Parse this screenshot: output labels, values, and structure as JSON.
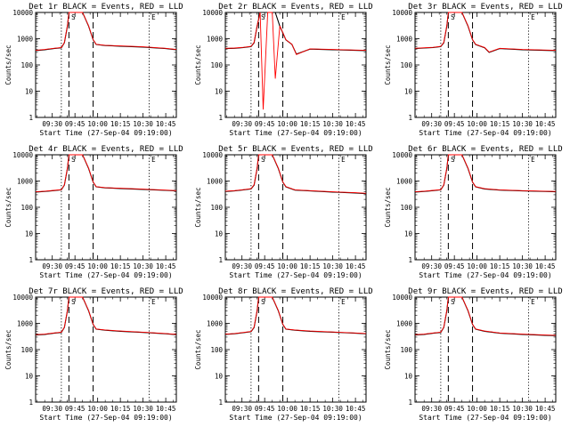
{
  "chart_data": [
    {
      "type": "line",
      "title": "Det 1r BLACK = Events, RED = LLD",
      "xlabel": "Start Time (27-Sep-04 09:19:00)",
      "ylabel": "Counts/sec",
      "yscale": "log",
      "ylim": [
        1,
        10000
      ],
      "yticks": [
        "1",
        "10",
        "100",
        "1000",
        "10000"
      ],
      "xticks": [
        "09:30",
        "09:45",
        "10:00",
        "10:15",
        "10:30",
        "10:45"
      ],
      "markers": [
        "S",
        "E"
      ],
      "vlines_dashed": [
        "09:41",
        "09:57"
      ],
      "vlines_dotted": [
        "09:36",
        "10:34"
      ],
      "x": [
        "09:19",
        "09:25",
        "09:31",
        "09:36",
        "09:38",
        "09:40",
        "09:41",
        "09:43",
        "09:46",
        "09:50",
        "09:54",
        "09:57",
        "09:59",
        "10:05",
        "10:15",
        "10:30",
        "10:45",
        "10:52"
      ],
      "series": [
        {
          "name": "Events",
          "color": "#000000",
          "values": [
            350,
            380,
            420,
            450,
            700,
            3000,
            10000,
            10000,
            10000,
            10000,
            3000,
            900,
            600,
            550,
            520,
            480,
            420,
            380
          ]
        },
        {
          "name": "LLD",
          "color": "#ff0000",
          "values": [
            360,
            390,
            430,
            460,
            720,
            3100,
            10000,
            10000,
            10000,
            10000,
            3100,
            920,
            610,
            560,
            530,
            490,
            430,
            390
          ]
        }
      ]
    },
    {
      "type": "line",
      "title": "Det 2r BLACK = Events, RED = LLD",
      "xlabel": "Start Time (27-Sep-04 09:19:00)",
      "ylabel": "Counts/sec",
      "yscale": "log",
      "ylim": [
        1,
        10000
      ],
      "yticks": [
        "1",
        "10",
        "100",
        "1000",
        "10000"
      ],
      "xticks": [
        "09:30",
        "09:45",
        "10:00",
        "10:15",
        "10:30",
        "10:45"
      ],
      "markers": [
        "S",
        "E"
      ],
      "vlines_dashed": [
        "09:41",
        "09:57"
      ],
      "vlines_dotted": [
        "09:36",
        "10:34"
      ],
      "x": [
        "09:19",
        "09:25",
        "09:31",
        "09:36",
        "09:38",
        "09:40",
        "09:42",
        "09:44",
        "09:47",
        "09:50",
        "09:52",
        "09:55",
        "09:59",
        "10:03",
        "10:06",
        "10:15",
        "10:30",
        "10:52"
      ],
      "series": [
        {
          "name": "Events",
          "color": "#000000",
          "values": [
            420,
            430,
            460,
            500,
            700,
            3000,
            10000,
            10000,
            10000,
            10000,
            10000,
            3000,
            900,
            600,
            260,
            400,
            380,
            350
          ]
        },
        {
          "name": "LLD",
          "color": "#ff0000",
          "values": [
            430,
            440,
            470,
            510,
            720,
            3100,
            10000,
            2,
            10000,
            10000,
            30,
            3100,
            920,
            610,
            250,
            410,
            390,
            360
          ]
        }
      ]
    },
    {
      "type": "line",
      "title": "Det 3r BLACK = Events, RED = LLD",
      "xlabel": "Start Time (27-Sep-04 09:19:00)",
      "ylabel": "Counts/sec",
      "yscale": "log",
      "ylim": [
        1,
        10000
      ],
      "yticks": [
        "1",
        "10",
        "100",
        "1000",
        "10000"
      ],
      "xticks": [
        "09:30",
        "09:45",
        "10:00",
        "10:15",
        "10:30",
        "10:45"
      ],
      "markers": [
        "S",
        "E"
      ],
      "vlines_dashed": [
        "09:41",
        "09:57"
      ],
      "vlines_dotted": [
        "09:36",
        "10:34"
      ],
      "x": [
        "09:19",
        "09:25",
        "09:31",
        "09:36",
        "09:38",
        "09:40",
        "09:41",
        "09:43",
        "09:46",
        "09:50",
        "09:54",
        "09:57",
        "09:59",
        "10:05",
        "10:08",
        "10:15",
        "10:30",
        "10:52"
      ],
      "series": [
        {
          "name": "Events",
          "color": "#000000",
          "values": [
            420,
            440,
            460,
            500,
            700,
            3000,
            10000,
            10000,
            10000,
            10000,
            3000,
            900,
            600,
            450,
            300,
            420,
            380,
            350
          ]
        },
        {
          "name": "LLD",
          "color": "#ff0000",
          "values": [
            430,
            450,
            470,
            510,
            720,
            3100,
            10000,
            10000,
            10000,
            10000,
            3100,
            920,
            610,
            460,
            310,
            430,
            390,
            360
          ]
        }
      ]
    },
    {
      "type": "line",
      "title": "Det 4r BLACK = Events, RED = LLD",
      "xlabel": "Start Time (27-Sep-04 09:19:00)",
      "ylabel": "Counts/sec",
      "yscale": "log",
      "ylim": [
        1,
        10000
      ],
      "yticks": [
        "1",
        "10",
        "100",
        "1000",
        "10000"
      ],
      "xticks": [
        "09:30",
        "09:45",
        "10:00",
        "10:15",
        "10:30",
        "10:45"
      ],
      "markers": [
        "S",
        "E"
      ],
      "vlines_dashed": [
        "09:41",
        "09:57"
      ],
      "vlines_dotted": [
        "09:36",
        "10:34"
      ],
      "x": [
        "09:19",
        "09:25",
        "09:31",
        "09:36",
        "09:38",
        "09:40",
        "09:41",
        "09:43",
        "09:46",
        "09:50",
        "09:54",
        "09:57",
        "09:59",
        "10:05",
        "10:15",
        "10:30",
        "10:45",
        "10:52"
      ],
      "series": [
        {
          "name": "Events",
          "color": "#000000",
          "values": [
            380,
            400,
            430,
            460,
            700,
            3000,
            10000,
            10000,
            10000,
            10000,
            3000,
            900,
            600,
            550,
            520,
            480,
            440,
            420
          ]
        },
        {
          "name": "LLD",
          "color": "#ff0000",
          "values": [
            390,
            410,
            440,
            470,
            720,
            3100,
            10000,
            10000,
            10000,
            10000,
            3100,
            920,
            610,
            560,
            530,
            490,
            450,
            430
          ]
        }
      ]
    },
    {
      "type": "line",
      "title": "Det 5r BLACK = Events, RED = LLD",
      "xlabel": "Start Time (27-Sep-04 09:19:00)",
      "ylabel": "Counts/sec",
      "yscale": "log",
      "ylim": [
        1,
        10000
      ],
      "yticks": [
        "1",
        "10",
        "100",
        "1000",
        "10000"
      ],
      "xticks": [
        "09:30",
        "09:45",
        "10:00",
        "10:15",
        "10:30",
        "10:45"
      ],
      "markers": [
        "S",
        "E"
      ],
      "vlines_dashed": [
        "09:41",
        "09:57"
      ],
      "vlines_dotted": [
        "09:36",
        "10:34"
      ],
      "x": [
        "09:19",
        "09:25",
        "09:31",
        "09:36",
        "09:38",
        "09:40",
        "09:41",
        "09:43",
        "09:46",
        "09:50",
        "09:54",
        "09:57",
        "09:59",
        "10:05",
        "10:15",
        "10:30",
        "10:45",
        "10:52"
      ],
      "series": [
        {
          "name": "Events",
          "color": "#000000",
          "values": [
            400,
            420,
            460,
            500,
            700,
            3000,
            10000,
            10000,
            10000,
            10000,
            3000,
            900,
            600,
            450,
            420,
            380,
            350,
            330
          ]
        },
        {
          "name": "LLD",
          "color": "#ff0000",
          "values": [
            410,
            430,
            470,
            510,
            720,
            3100,
            10000,
            10000,
            10000,
            10000,
            3100,
            920,
            610,
            460,
            430,
            390,
            360,
            340
          ]
        }
      ]
    },
    {
      "type": "line",
      "title": "Det 6r BLACK = Events, RED = LLD",
      "xlabel": "Start Time (27-Sep-04 09:19:00)",
      "ylabel": "Counts/sec",
      "yscale": "log",
      "ylim": [
        1,
        10000
      ],
      "yticks": [
        "1",
        "10",
        "100",
        "1000",
        "10000"
      ],
      "xticks": [
        "09:30",
        "09:45",
        "10:00",
        "10:15",
        "10:30",
        "10:45"
      ],
      "markers": [
        "S",
        "E"
      ],
      "vlines_dashed": [
        "09:41",
        "09:57"
      ],
      "vlines_dotted": [
        "09:36",
        "10:34"
      ],
      "x": [
        "09:19",
        "09:25",
        "09:31",
        "09:36",
        "09:38",
        "09:40",
        "09:41",
        "09:43",
        "09:46",
        "09:50",
        "09:54",
        "09:57",
        "09:59",
        "10:05",
        "10:15",
        "10:30",
        "10:45",
        "10:52"
      ],
      "series": [
        {
          "name": "Events",
          "color": "#000000",
          "values": [
            380,
            400,
            430,
            460,
            700,
            3000,
            10000,
            10000,
            10000,
            10000,
            3000,
            900,
            600,
            500,
            450,
            420,
            400,
            390
          ]
        },
        {
          "name": "LLD",
          "color": "#ff0000",
          "values": [
            390,
            410,
            440,
            470,
            720,
            3100,
            10000,
            10000,
            10000,
            10000,
            3100,
            920,
            610,
            510,
            460,
            430,
            410,
            400
          ]
        }
      ]
    },
    {
      "type": "line",
      "title": "Det 7r BLACK = Events, RED = LLD",
      "xlabel": "Start Time (27-Sep-04 09:19:00)",
      "ylabel": "Counts/sec",
      "yscale": "log",
      "ylim": [
        1,
        10000
      ],
      "yticks": [
        "1",
        "10",
        "100",
        "1000",
        "10000"
      ],
      "xticks": [
        "09:30",
        "09:45",
        "10:00",
        "10:15",
        "10:30",
        "10:45"
      ],
      "markers": [
        "S",
        "E"
      ],
      "vlines_dashed": [
        "09:41",
        "09:57"
      ],
      "vlines_dotted": [
        "09:36",
        "10:34"
      ],
      "x": [
        "09:19",
        "09:25",
        "09:31",
        "09:36",
        "09:38",
        "09:40",
        "09:41",
        "09:43",
        "09:46",
        "09:50",
        "09:54",
        "09:57",
        "09:59",
        "10:05",
        "10:15",
        "10:30",
        "10:45",
        "10:52"
      ],
      "series": [
        {
          "name": "Events",
          "color": "#000000",
          "values": [
            360,
            380,
            420,
            450,
            700,
            3000,
            10000,
            10000,
            10000,
            10000,
            3000,
            900,
            600,
            550,
            500,
            450,
            400,
            370
          ]
        },
        {
          "name": "LLD",
          "color": "#ff0000",
          "values": [
            370,
            390,
            430,
            460,
            720,
            3100,
            10000,
            10000,
            10000,
            10000,
            3100,
            920,
            610,
            560,
            510,
            460,
            410,
            380
          ]
        }
      ]
    },
    {
      "type": "line",
      "title": "Det 8r BLACK = Events, RED = LLD",
      "xlabel": "Start Time (27-Sep-04 09:19:00)",
      "ylabel": "Counts/sec",
      "yscale": "log",
      "ylim": [
        1,
        10000
      ],
      "yticks": [
        "1",
        "10",
        "100",
        "1000",
        "10000"
      ],
      "xticks": [
        "09:30",
        "09:45",
        "10:00",
        "10:15",
        "10:30",
        "10:45"
      ],
      "markers": [
        "S",
        "E"
      ],
      "vlines_dashed": [
        "09:41",
        "09:57"
      ],
      "vlines_dotted": [
        "09:36",
        "10:34"
      ],
      "x": [
        "09:19",
        "09:25",
        "09:31",
        "09:36",
        "09:38",
        "09:40",
        "09:41",
        "09:43",
        "09:46",
        "09:50",
        "09:54",
        "09:57",
        "09:59",
        "10:05",
        "10:15",
        "10:30",
        "10:45",
        "10:52"
      ],
      "series": [
        {
          "name": "Events",
          "color": "#000000",
          "values": [
            380,
            400,
            440,
            480,
            700,
            3000,
            10000,
            10000,
            10000,
            10000,
            3000,
            900,
            600,
            550,
            500,
            460,
            420,
            400
          ]
        },
        {
          "name": "LLD",
          "color": "#ff0000",
          "values": [
            390,
            410,
            450,
            490,
            720,
            3100,
            10000,
            10000,
            10000,
            10000,
            3100,
            920,
            610,
            560,
            510,
            470,
            430,
            410
          ]
        }
      ]
    },
    {
      "type": "line",
      "title": "Det 9r BLACK = Events, RED = LLD",
      "xlabel": "Start Time (27-Sep-04 09:19:00)",
      "ylabel": "Counts/sec",
      "yscale": "log",
      "ylim": [
        1,
        10000
      ],
      "yticks": [
        "1",
        "10",
        "100",
        "1000",
        "10000"
      ],
      "xticks": [
        "09:30",
        "09:45",
        "10:00",
        "10:15",
        "10:30",
        "10:45"
      ],
      "markers": [
        "S",
        "E"
      ],
      "vlines_dashed": [
        "09:41",
        "09:57"
      ],
      "vlines_dotted": [
        "09:36",
        "10:34"
      ],
      "x": [
        "09:19",
        "09:25",
        "09:31",
        "09:36",
        "09:38",
        "09:40",
        "09:41",
        "09:43",
        "09:46",
        "09:50",
        "09:54",
        "09:57",
        "09:59",
        "10:05",
        "10:15",
        "10:30",
        "10:45",
        "10:52"
      ],
      "series": [
        {
          "name": "Events",
          "color": "#000000",
          "values": [
            360,
            380,
            420,
            450,
            700,
            3000,
            10000,
            10000,
            10000,
            10000,
            3000,
            900,
            600,
            500,
            420,
            380,
            350,
            340
          ]
        },
        {
          "name": "LLD",
          "color": "#ff0000",
          "values": [
            370,
            390,
            430,
            460,
            720,
            3100,
            10000,
            10000,
            10000,
            10000,
            3100,
            920,
            610,
            510,
            430,
            390,
            360,
            350
          ]
        }
      ]
    }
  ]
}
